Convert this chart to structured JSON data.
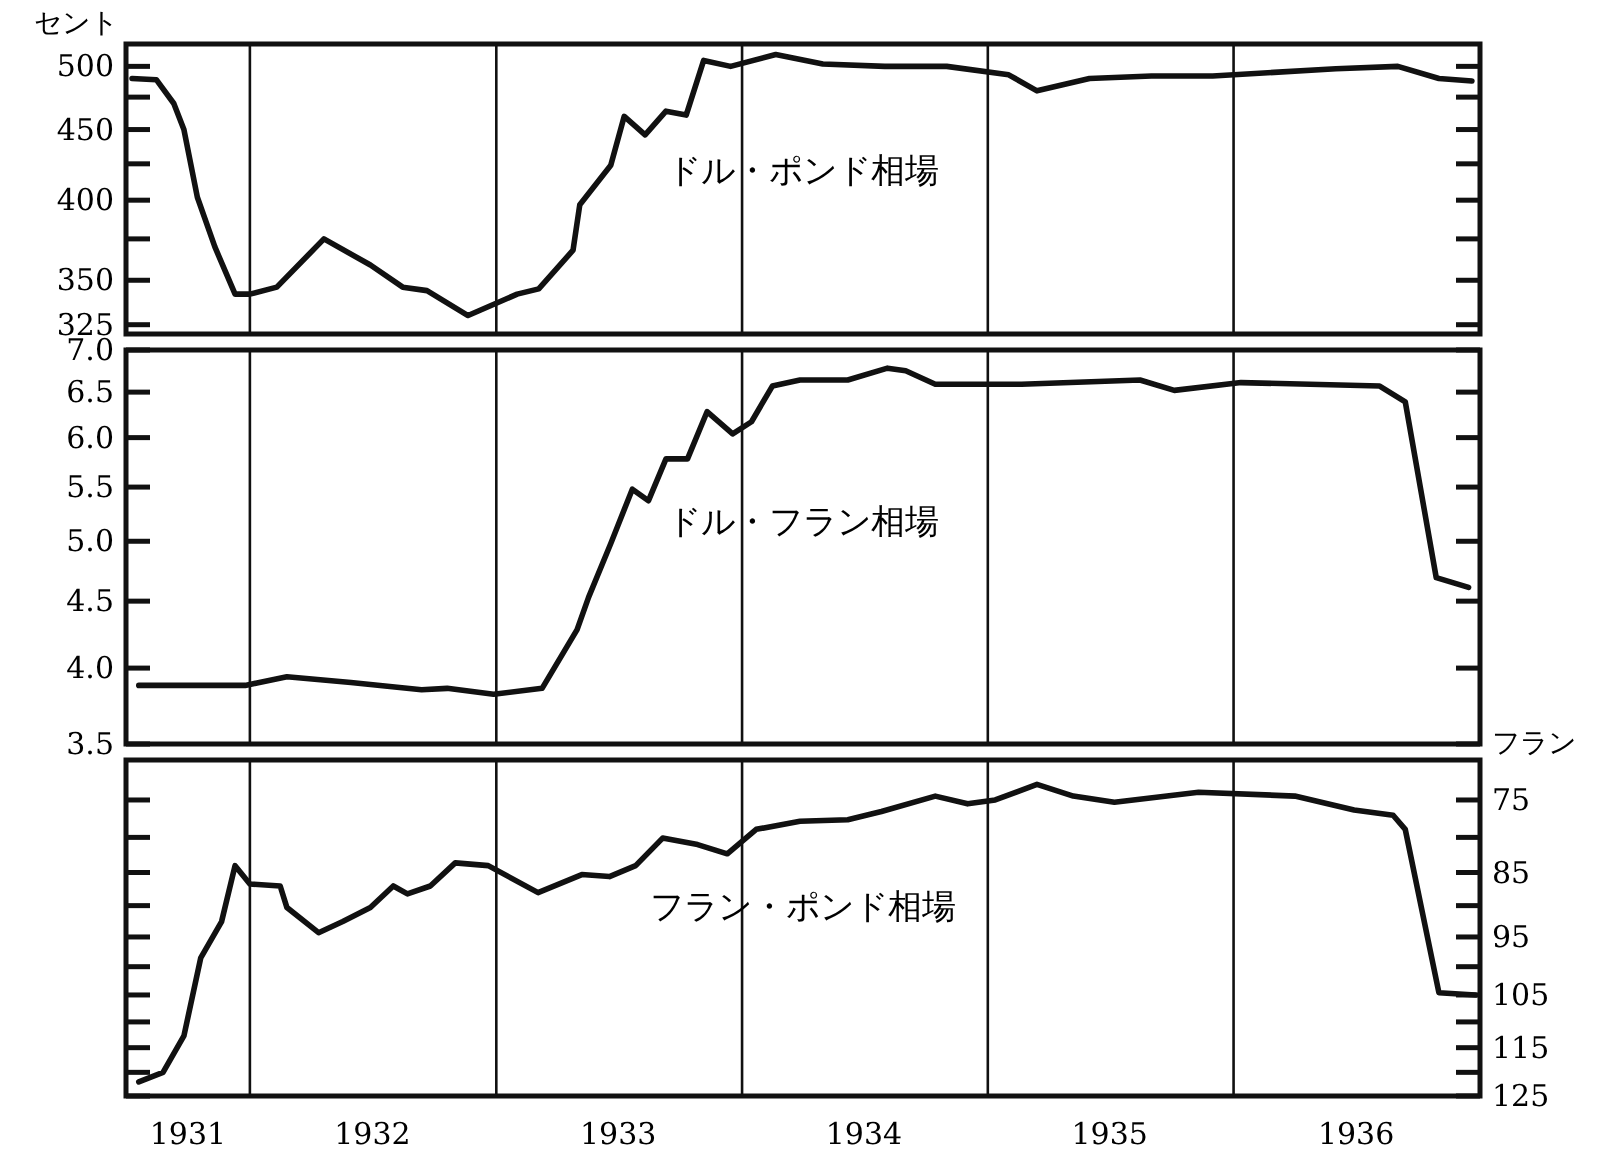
{
  "chart_data": [
    {
      "type": "line",
      "title": "ドル・ポンド相場",
      "ylabel": "セント",
      "log": true,
      "tick_labels": "y",
      "xlim": [
        "1931-07-01",
        "1937-01-01"
      ],
      "ylim": [
        320,
        519
      ],
      "yticks": [
        325,
        350,
        {
          "value": 375,
          "label": null
        },
        400,
        {
          "value": 425,
          "label": null
        },
        450,
        {
          "value": 475,
          "label": null
        },
        500
      ],
      "ref_lines": [
        {
          "axis": "x",
          "value": "1932-01-01"
        },
        {
          "axis": "x",
          "value": "1933-01-01"
        },
        {
          "axis": "x",
          "value": "1934-01-01"
        },
        {
          "axis": "x",
          "value": "1935-01-01"
        },
        {
          "axis": "x",
          "value": "1936-01-01"
        }
      ],
      "x": [
        "1931-07-10",
        "1931-08-15",
        "1931-09-10",
        "1931-09-25",
        "1931-10-15",
        "1931-11-10",
        "1931-12-10",
        "1932-01-01",
        "1932-02-10",
        "1932-04-20",
        "1932-06-28",
        "1932-08-15",
        "1932-09-20",
        "1932-11-20",
        "1933-02-01",
        "1933-03-05",
        "1933-04-25",
        "1933-05-05",
        "1933-06-20",
        "1933-07-10",
        "1933-08-10",
        "1933-09-10",
        "1933-10-10",
        "1933-11-05",
        "1933-12-15",
        "1934-02-20",
        "1934-05-01",
        "1934-08-01",
        "1934-11-01",
        "1935-02-01",
        "1935-03-15",
        "1935-06-01",
        "1935-09-01",
        "1935-12-01",
        "1936-03-01",
        "1936-06-01",
        "1936-09-01",
        "1936-11-01",
        "1936-12-20"
      ],
      "series": [
        {
          "color": "#111111",
          "values": [
            490,
            489,
            470,
            450,
            402,
            370,
            342,
            342,
            346,
            375,
            359,
            346,
            344,
            330,
            342,
            345,
            368,
            397,
            424,
            460,
            446,
            464,
            461,
            505,
            500,
            510,
            502,
            500,
            500,
            493,
            480,
            490,
            492,
            492,
            495,
            498,
            500,
            490,
            488
          ]
        }
      ]
    },
    {
      "type": "line",
      "title": "ドル・フラン相場",
      "log": true,
      "tick_labels": "y",
      "xlim": [
        "1931-07-01",
        "1937-01-01"
      ],
      "ylim": [
        3.5,
        7.0
      ],
      "yticks": [
        3.5,
        {
          "value": 4,
          "label": "4.0"
        },
        4.5,
        {
          "value": 5,
          "label": "5.0"
        },
        5.5,
        {
          "value": 6,
          "label": "6.0"
        },
        6.5,
        {
          "value": 7,
          "label": "7.0"
        }
      ],
      "ref_lines": [
        {
          "axis": "x",
          "value": "1932-01-01"
        },
        {
          "axis": "x",
          "value": "1933-01-01"
        },
        {
          "axis": "x",
          "value": "1934-01-01"
        },
        {
          "axis": "x",
          "value": "1935-01-01"
        },
        {
          "axis": "x",
          "value": "1936-01-01"
        }
      ],
      "x": [
        "1931-07-20",
        "1931-12-25",
        "1932-02-25",
        "1932-05-30",
        "1932-09-12",
        "1932-10-20",
        "1932-12-28",
        "1933-03-10",
        "1933-05-01",
        "1933-05-18",
        "1933-06-20",
        "1933-07-22",
        "1933-08-15",
        "1933-09-10",
        "1933-10-12",
        "1933-11-10",
        "1933-12-18",
        "1934-01-15",
        "1934-02-15",
        "1934-03-28",
        "1934-06-07",
        "1934-08-05",
        "1934-09-01",
        "1934-10-15",
        "1935-02-20",
        "1935-08-15",
        "1935-10-05",
        "1936-01-12",
        "1936-08-05",
        "1936-09-12",
        "1936-10-28",
        "1936-12-15"
      ],
      "series": [
        {
          "color": "#111111",
          "values": [
            3.88,
            3.88,
            3.94,
            3.9,
            3.85,
            3.86,
            3.82,
            3.86,
            4.28,
            4.53,
            4.98,
            5.48,
            5.37,
            5.78,
            5.78,
            6.28,
            6.04,
            6.17,
            6.57,
            6.64,
            6.64,
            6.78,
            6.75,
            6.59,
            6.59,
            6.64,
            6.52,
            6.61,
            6.57,
            6.39,
            4.69,
            4.61
          ]
        }
      ]
    },
    {
      "type": "line",
      "title": "フラン・ポンド相場",
      "y2label": "フラン",
      "log": "y2",
      "xlim": [
        "1931-07-01",
        "1937-01-01"
      ],
      "y2lim": [
        125,
        70
      ],
      "y2ticks": [
        75,
        {
          "value": 80,
          "label": null
        },
        85,
        {
          "value": 90,
          "label": null
        },
        95,
        {
          "value": 100,
          "label": null
        },
        105,
        {
          "value": 110,
          "label": null
        },
        115,
        {
          "value": 120,
          "label": null
        },
        125
      ],
      "xticks": [
        {
          "value": "1931-10-01",
          "label": "1931"
        },
        {
          "value": "1932-07-01",
          "label": "1932"
        },
        {
          "value": "1933-07-01",
          "label": "1933"
        },
        {
          "value": "1934-07-01",
          "label": "1934"
        },
        {
          "value": "1935-07-01",
          "label": "1935"
        },
        {
          "value": "1936-07-01",
          "label": "1936"
        }
      ],
      "ref_lines": [
        {
          "axis": "x",
          "value": "1932-01-01"
        },
        {
          "axis": "x",
          "value": "1933-01-01"
        },
        {
          "axis": "x",
          "value": "1934-01-01"
        },
        {
          "axis": "x",
          "value": "1935-01-01"
        },
        {
          "axis": "x",
          "value": "1936-01-01"
        }
      ],
      "x": [
        "1931-07-20",
        "1931-08-25",
        "1931-09-25",
        "1931-10-20",
        "1931-11-20",
        "1931-12-10",
        "1932-01-01",
        "1932-02-15",
        "1932-02-25",
        "1932-04-12",
        "1932-05-18",
        "1932-06-28",
        "1932-08-01",
        "1932-08-22",
        "1932-09-25",
        "1932-11-01",
        "1932-12-20",
        "1933-03-04",
        "1933-05-08",
        "1933-06-18",
        "1933-07-27",
        "1933-09-05",
        "1933-10-27",
        "1933-12-10",
        "1934-01-22",
        "1934-03-28",
        "1934-06-07",
        "1934-07-27",
        "1934-10-15",
        "1934-12-02",
        "1935-01-12",
        "1935-03-15",
        "1935-05-08",
        "1935-07-08",
        "1935-11-10",
        "1936-04-01",
        "1936-06-28",
        "1936-08-25",
        "1936-09-12",
        "1936-11-01",
        "1936-12-25"
      ],
      "series": [
        {
          "color": "#111111",
          "axis": "y2",
          "values": [
            122,
            120,
            112.7,
            98.5,
            92.5,
            84,
            86.7,
            87,
            90.3,
            94.3,
            92.5,
            90.3,
            87,
            88.2,
            87,
            83.6,
            84,
            88,
            85.3,
            85.6,
            84,
            80.1,
            81,
            82.3,
            78.9,
            77.8,
            77.6,
            76.5,
            74.5,
            75.5,
            75,
            73,
            74.5,
            75.3,
            74,
            74.5,
            76.3,
            77,
            78.9,
            104.6,
            105
          ]
        }
      ]
    }
  ]
}
